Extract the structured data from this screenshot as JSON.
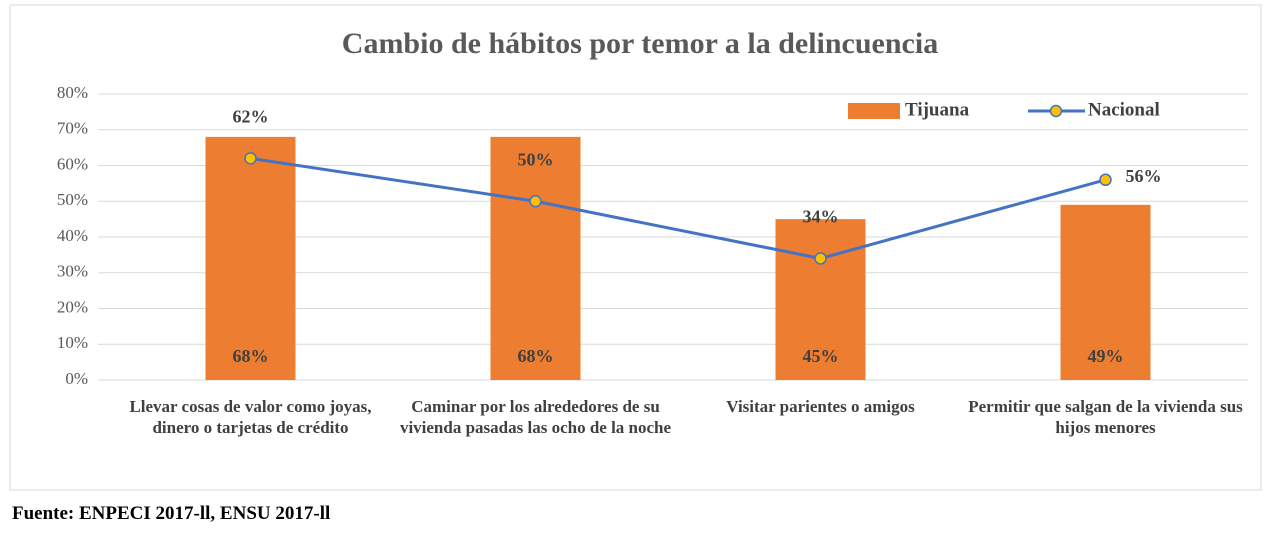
{
  "chart_data": {
    "type": "combo",
    "title": "Cambio de hábitos por temor a la delincuencia",
    "categories": [
      "Llevar cosas de valor como joyas, dinero o tarjetas de crédito",
      "Caminar por los alrededores de su vivienda pasadas las ocho de la noche",
      "Visitar parientes o amigos",
      "Permitir que salgan de la vivienda sus hijos menores"
    ],
    "series": [
      {
        "name": "Tijuana",
        "type": "bar",
        "color": "#ed7d31",
        "values": [
          68,
          68,
          45,
          49
        ],
        "value_labels": [
          "68%",
          "68%",
          "45%",
          "49%"
        ]
      },
      {
        "name": "Nacional",
        "type": "line",
        "color": "#4472c4",
        "marker_color": "#ffc000",
        "values": [
          62,
          50,
          34,
          56
        ],
        "value_labels": [
          "62%",
          "50%",
          "34%",
          "56%"
        ]
      }
    ],
    "ylim": [
      0,
      80
    ],
    "yticks": [
      {
        "value": 0,
        "label": "0%"
      },
      {
        "value": 10,
        "label": "10%"
      },
      {
        "value": 20,
        "label": "20%"
      },
      {
        "value": 30,
        "label": "30%"
      },
      {
        "value": 40,
        "label": "40%"
      },
      {
        "value": 50,
        "label": "50%"
      },
      {
        "value": 60,
        "label": "60%"
      },
      {
        "value": 70,
        "label": "70%"
      },
      {
        "value": 80,
        "label": "80%"
      }
    ],
    "grid": true,
    "legend": "top-right",
    "source": "Fuente: ENPECI 2017-ll, ENSU 2017-ll"
  }
}
